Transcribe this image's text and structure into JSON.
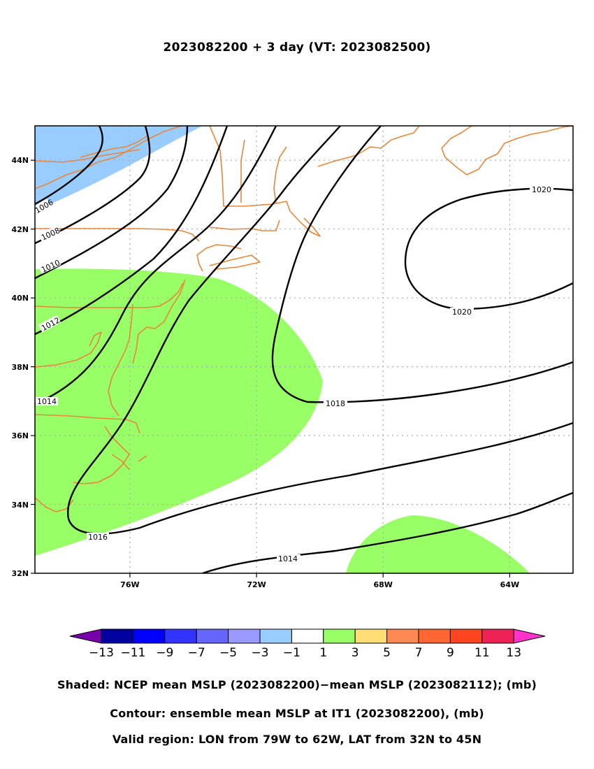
{
  "title": "2023082200 + 3 day (VT: 2023082500)",
  "map": {
    "lon_range": [
      -79,
      -62
    ],
    "lat_range": [
      32,
      45
    ],
    "lon_ticks": [
      "76W",
      "72W",
      "68W",
      "64W"
    ],
    "lat_ticks": [
      "44N",
      "42N",
      "40N",
      "38N",
      "36N",
      "34N",
      "32N"
    ],
    "contour_labels": [
      "1006",
      "1008",
      "1010",
      "1012",
      "1014",
      "1016",
      "1018",
      "1020",
      "1020",
      "1014"
    ],
    "shading_colors": {
      "negative_light": "#99ccff",
      "positive_light": "#99ff66"
    },
    "coastline_color": "#e8873a"
  },
  "colorbar": {
    "labels": [
      "−13",
      "−11",
      "−9",
      "−7",
      "−5",
      "−3",
      "−1",
      "1",
      "3",
      "5",
      "7",
      "9",
      "11",
      "13"
    ],
    "colors": [
      "#0000a0",
      "#0000ff",
      "#3333ff",
      "#6666ff",
      "#9999ff",
      "#99ccff",
      "#ffffff",
      "#99ff66",
      "#ffdd77",
      "#ff8855",
      "#ff6633",
      "#ff4422",
      "#ee2255"
    ],
    "low_extend": "#7700aa",
    "high_extend": "#ff33cc"
  },
  "captions": {
    "shaded": "Shaded: NCEP mean MSLP (2023082200)−mean MSLP (2023082112); (mb)",
    "contour": "Contour: ensemble mean MSLP at IT1 (2023082200), (mb)",
    "region": "Valid region: LON from 79W to 62W, LAT from 32N to 45N"
  }
}
